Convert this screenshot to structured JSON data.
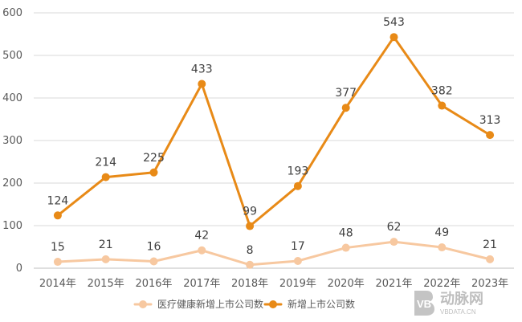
{
  "chart_data": {
    "type": "line",
    "categories": [
      "2014年",
      "2015年",
      "2016年",
      "2017年",
      "2018年",
      "2019年",
      "2020年",
      "2021年",
      "2022年",
      "2023年"
    ],
    "series": [
      {
        "name": "医疗健康新增上市公司数",
        "color": "#F7C8A0",
        "values": [
          15,
          21,
          16,
          42,
          8,
          17,
          48,
          62,
          49,
          21
        ]
      },
      {
        "name": "新增上市公司数",
        "color": "#E88A17",
        "values": [
          124,
          214,
          225,
          433,
          99,
          193,
          377,
          543,
          382,
          313
        ]
      }
    ],
    "y_ticks": [
      0,
      100,
      200,
      300,
      400,
      500,
      600
    ],
    "ylim": [
      0,
      600
    ],
    "grid": true,
    "legend": "bottom-center"
  },
  "watermark": {
    "brand": "动脉网",
    "site": "VBDATA.CN",
    "logo_text": "VB"
  }
}
